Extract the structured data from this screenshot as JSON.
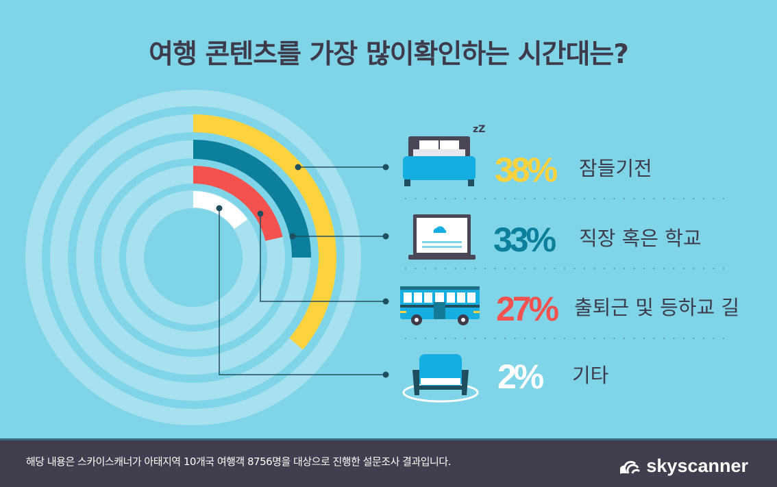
{
  "title": "여행 콘텐츠를 가장 많이확인하는 시간대는?",
  "chart_data": {
    "type": "radial-bar",
    "categories": [
      "잠들기전",
      "직장 혹은 학교",
      "출퇴근 및 등하교 길",
      "기타"
    ],
    "values": [
      38,
      33,
      27,
      2
    ],
    "value_labels": [
      "38%",
      "33%",
      "27%",
      "2%"
    ],
    "colors": [
      "#fdd23f",
      "#0c7f9c",
      "#f4524f",
      "#ffffff"
    ],
    "icons": [
      "bed-icon",
      "laptop-icon",
      "bus-icon",
      "armchair-icon"
    ],
    "track_color": "#a7e1ef",
    "background": "#7fd4e7"
  },
  "icon_text": {
    "sleep": "zZ"
  },
  "footer": {
    "note": "해당 내용은 스카이스캐너가 아태지역 10개국 여행객 8756명을 대상으로 진행한 설문조사 결과입니다.",
    "logo": "skyscanner"
  }
}
